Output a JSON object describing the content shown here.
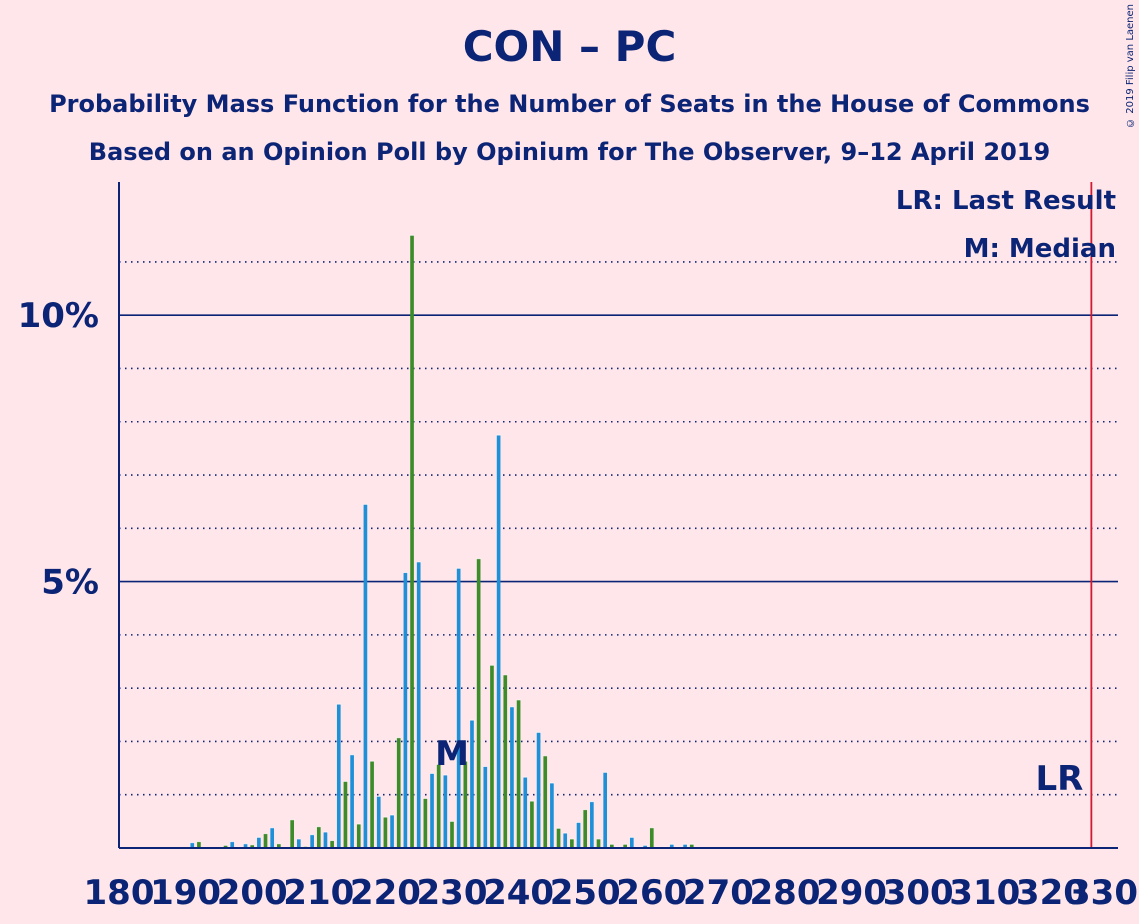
{
  "header": {
    "title": "CON – PC",
    "subtitle_1": "Probability Mass Function for the Number of Seats in the House of Commons",
    "subtitle_2": "Based on an Opinion Poll by Opinium for The Observer, 9–12 April 2019",
    "copyright": "© 2019 Filip van Laenen"
  },
  "colors": {
    "background": "#FFE6EA",
    "text": "#0B2475",
    "grid": "#0B2475",
    "bar_blue": "#1E90D8",
    "bar_green": "#3C8C2A",
    "last_result_line": "#D2192F"
  },
  "chart_data": {
    "type": "bar",
    "xlim": [
      180,
      330
    ],
    "ylim": [
      0,
      12.5
    ],
    "x_ticks": [
      "180",
      "190",
      "200",
      "210",
      "220",
      "230",
      "240",
      "250",
      "260",
      "270",
      "280",
      "290",
      "300",
      "310",
      "320",
      "330"
    ],
    "y_ticks": [
      {
        "value": 5,
        "label": "5%"
      },
      {
        "value": 10,
        "label": "10%"
      }
    ],
    "y_unit": "%",
    "minor_grid": [
      1,
      2,
      3,
      4,
      6,
      7,
      8,
      9,
      11
    ],
    "legend": {
      "last_result": "LR: Last Result",
      "median": "M: Median",
      "position": "top-right"
    },
    "median": {
      "seat": 230,
      "label": "M"
    },
    "last_result": {
      "seat": 326,
      "label": "LR"
    },
    "seats": [
      186,
      187,
      188,
      189,
      190,
      191,
      192,
      193,
      194,
      195,
      196,
      197,
      198,
      199,
      200,
      201,
      202,
      203,
      204,
      205,
      206,
      207,
      208,
      209,
      210,
      211,
      212,
      213,
      214,
      215,
      216,
      217,
      218,
      219,
      220,
      221,
      222,
      223,
      224,
      225,
      226,
      227,
      228,
      229,
      230,
      231,
      232,
      233,
      234,
      235,
      236,
      237,
      238,
      239,
      240,
      241,
      242,
      243,
      244,
      245,
      246,
      247,
      248,
      249,
      250,
      251,
      252,
      253,
      254,
      255,
      256,
      257,
      258,
      259,
      260,
      261,
      262,
      263,
      264,
      265,
      266,
      267,
      268,
      269,
      270,
      271,
      272,
      273,
      274,
      275,
      276,
      277,
      278,
      279,
      280,
      281,
      282,
      283,
      284,
      285,
      286,
      287,
      288,
      289,
      290
    ],
    "probabilities": [
      0,
      0,
      0,
      0,
      0,
      0.1,
      0.12,
      0,
      0,
      0,
      0.05,
      0.12,
      0.02,
      0.08,
      0.06,
      0.2,
      0.27,
      0.38,
      0.08,
      0.01,
      0.53,
      0.17,
      0.03,
      0.25,
      0.4,
      0.3,
      0.14,
      2.7,
      1.25,
      1.75,
      0.45,
      6.45,
      1.63,
      0.97,
      0.58,
      0.62,
      2.07,
      5.17,
      11.5,
      5.37,
      0.93,
      1.4,
      1.57,
      1.37,
      0.5,
      5.25,
      1.63,
      2.4,
      5.43,
      1.53,
      3.43,
      7.75,
      3.25,
      2.65,
      2.78,
      1.33,
      0.88,
      2.17,
      1.73,
      1.22,
      0.37,
      0.28,
      0.17,
      0.48,
      0.72,
      0.87,
      0.17,
      1.42,
      0.07,
      0.02,
      0.07,
      0.2,
      0.02,
      0.05,
      0.38,
      0.02,
      0.02,
      0.07,
      0.02,
      0.07,
      0.07,
      0.01,
      0,
      0,
      0,
      0,
      0,
      0,
      0,
      0,
      0,
      0,
      0,
      0,
      0,
      0,
      0,
      0,
      0,
      0,
      0,
      0,
      0,
      0,
      0
    ],
    "colors": [
      "green",
      "blue",
      "green",
      "blue",
      "green",
      "blue",
      "green",
      "blue",
      "green",
      "blue",
      "green",
      "blue",
      "green",
      "blue",
      "green",
      "blue",
      "green",
      "blue",
      "green",
      "blue",
      "green",
      "blue",
      "green",
      "blue",
      "green",
      "blue",
      "green",
      "blue",
      "green",
      "blue",
      "green",
      "blue",
      "green",
      "blue",
      "green",
      "blue",
      "green",
      "blue",
      "green",
      "blue",
      "green",
      "blue",
      "green",
      "blue",
      "green",
      "blue",
      "green",
      "blue",
      "green",
      "blue",
      "green",
      "blue",
      "green",
      "blue",
      "green",
      "blue",
      "green",
      "blue",
      "green",
      "blue",
      "green",
      "blue",
      "green",
      "blue",
      "green",
      "blue",
      "green",
      "blue",
      "green",
      "blue",
      "green",
      "blue",
      "green",
      "blue",
      "green",
      "blue",
      "green",
      "blue",
      "green",
      "blue",
      "green",
      "blue",
      "green",
      "blue",
      "green",
      "blue",
      "green",
      "blue",
      "green",
      "blue",
      "green",
      "blue",
      "green",
      "blue",
      "green",
      "blue",
      "green",
      "blue",
      "green",
      "blue",
      "green",
      "blue",
      "green"
    ]
  }
}
